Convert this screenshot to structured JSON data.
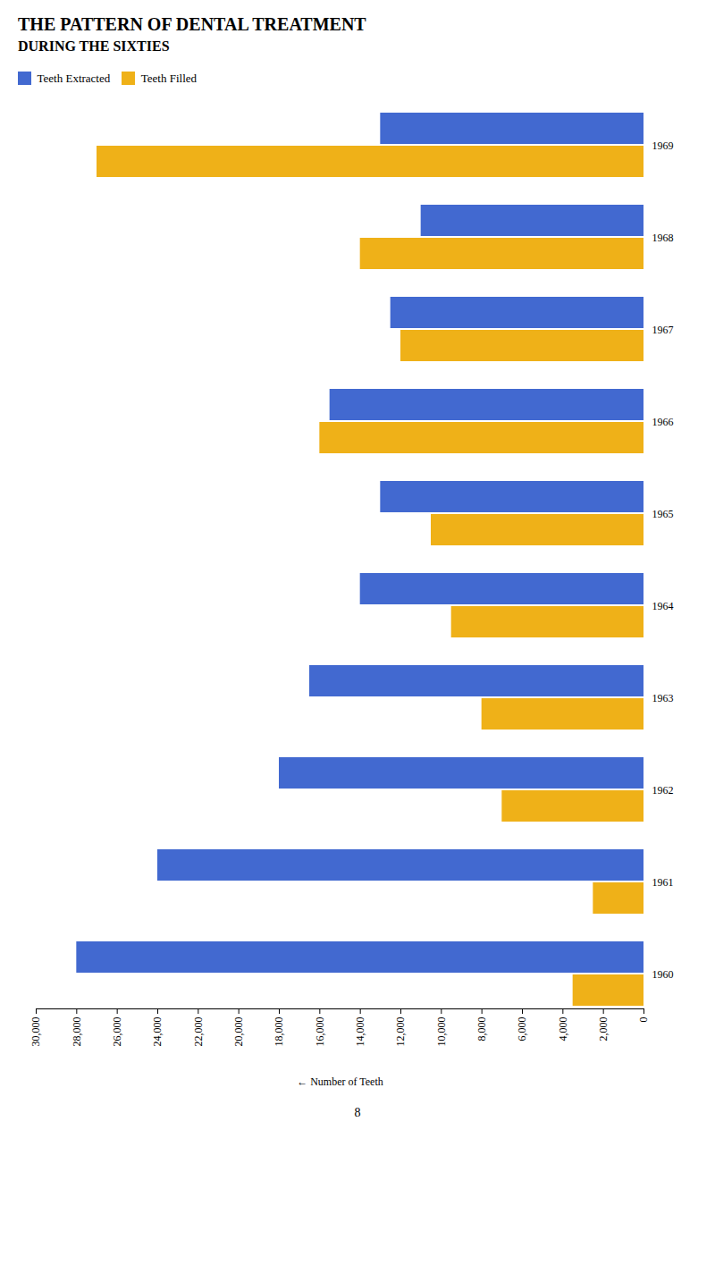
{
  "chart_data": {
    "type": "bar",
    "orientation": "horizontal",
    "title": "THE PATTERN OF DENTAL TREATMENT",
    "subtitle": "DURING THE SIXTIES",
    "xlabel": "Number of Teeth",
    "categories": [
      "1960",
      "1961",
      "1962",
      "1963",
      "1964",
      "1965",
      "1966",
      "1967",
      "1968",
      "1969"
    ],
    "series": [
      {
        "name": "Teeth Extracted",
        "values": [
          28000,
          24000,
          18000,
          16500,
          14000,
          13000,
          15500,
          12500,
          11000,
          13000
        ]
      },
      {
        "name": "Teeth Filled",
        "values": [
          3500,
          2500,
          7000,
          8000,
          9500,
          10500,
          16000,
          12000,
          14000,
          27000
        ]
      }
    ],
    "xlim": [
      30000,
      0
    ],
    "xticks": [
      0,
      {
        "value": 2000,
        "label": "2,000"
      },
      {
        "value": 4000,
        "label": "4,000"
      },
      {
        "value": 6000,
        "label": "6,000"
      },
      {
        "value": 8000,
        "label": "8,000"
      },
      {
        "value": 10000,
        "label": "10,000"
      },
      {
        "value": 12000,
        "label": "12,000"
      },
      {
        "value": 14000,
        "label": "14,000"
      },
      {
        "value": 16000,
        "label": "16,000"
      },
      {
        "value": 18000,
        "label": "18,000"
      },
      {
        "value": 20000,
        "label": "20,000"
      },
      {
        "value": 22000,
        "label": "22,000"
      },
      {
        "value": 24000,
        "label": "24,000"
      },
      {
        "value": 26000,
        "label": "26,000"
      },
      {
        "value": 28000,
        "label": "28,000"
      },
      {
        "value": 30000,
        "label": "30,000"
      }
    ],
    "grid": false,
    "legend": "top",
    "annotations": [
      "8"
    ]
  }
}
